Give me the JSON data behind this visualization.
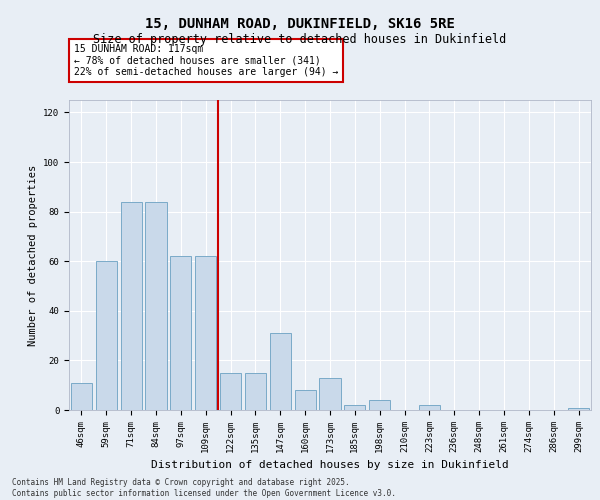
{
  "title_line1": "15, DUNHAM ROAD, DUKINFIELD, SK16 5RE",
  "title_line2": "Size of property relative to detached houses in Dukinfield",
  "xlabel": "Distribution of detached houses by size in Dukinfield",
  "ylabel": "Number of detached properties",
  "categories": [
    "46sqm",
    "59sqm",
    "71sqm",
    "84sqm",
    "97sqm",
    "109sqm",
    "122sqm",
    "135sqm",
    "147sqm",
    "160sqm",
    "173sqm",
    "185sqm",
    "198sqm",
    "210sqm",
    "223sqm",
    "236sqm",
    "248sqm",
    "261sqm",
    "274sqm",
    "286sqm",
    "299sqm"
  ],
  "values": [
    11,
    60,
    84,
    84,
    62,
    62,
    15,
    15,
    31,
    8,
    13,
    2,
    4,
    0,
    2,
    0,
    0,
    0,
    0,
    0,
    1
  ],
  "bar_color": "#c9d9ea",
  "bar_edge_color": "#7aaac8",
  "vline_pos": 5.5,
  "vline_color": "#cc0000",
  "annotation_title": "15 DUNHAM ROAD: 117sqm",
  "annotation_line1": "← 78% of detached houses are smaller (341)",
  "annotation_line2": "22% of semi-detached houses are larger (94) →",
  "annotation_box_color": "#ffffff",
  "annotation_box_edge": "#cc0000",
  "ylim": [
    0,
    125
  ],
  "yticks": [
    0,
    20,
    40,
    60,
    80,
    100,
    120
  ],
  "footer_line1": "Contains HM Land Registry data © Crown copyright and database right 2025.",
  "footer_line2": "Contains public sector information licensed under the Open Government Licence v3.0.",
  "bg_color": "#e8eef5",
  "plot_bg_color": "#e8eef5",
  "title_fontsize": 10,
  "subtitle_fontsize": 8.5,
  "ylabel_fontsize": 7.5,
  "xlabel_fontsize": 8,
  "tick_fontsize": 6.5,
  "annot_fontsize": 7,
  "footer_fontsize": 5.5
}
